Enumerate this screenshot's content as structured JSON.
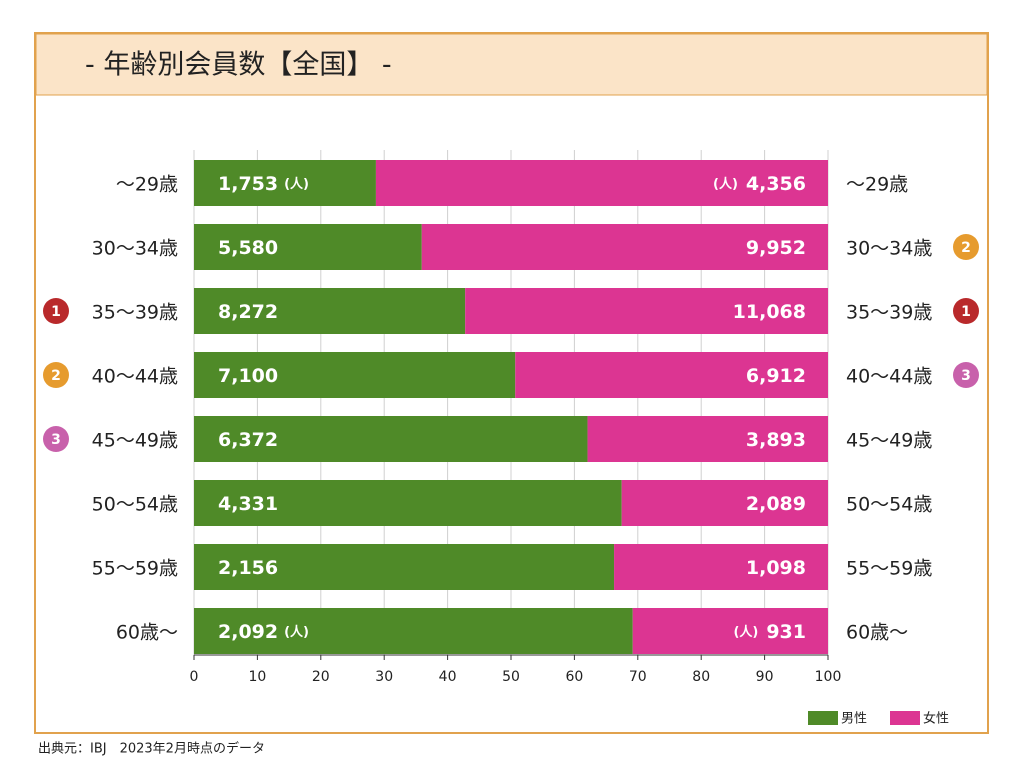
{
  "chart_data": {
    "type": "stacked_percent_bar",
    "title": "-  年齢別会員数【全国】 -",
    "categories": [
      "〜29歳",
      "30〜34歳",
      "35〜39歳",
      "40〜44歳",
      "45〜49歳",
      "50〜54歳",
      "55〜59歳",
      "60歳〜"
    ],
    "series": [
      {
        "name": "男性",
        "color": "#4f8a28",
        "values": [
          1753,
          5580,
          8272,
          7100,
          6372,
          4331,
          2156,
          2092
        ],
        "value_labels": [
          "1,753",
          "5,580",
          "8,272",
          "7,100",
          "6,372",
          "4,331",
          "2,156",
          "2,092"
        ]
      },
      {
        "name": "女性",
        "color": "#dc3592",
        "values": [
          4356,
          9952,
          11068,
          6912,
          3893,
          2089,
          1098,
          931
        ],
        "value_labels": [
          "4,356",
          "9,952",
          "11,068",
          "6,912",
          "3,893",
          "2,089",
          "1,098",
          "931"
        ]
      }
    ],
    "unit": "(人)",
    "xlim": [
      0,
      100
    ],
    "xticks": [
      0,
      10,
      20,
      30,
      40,
      50,
      60,
      70,
      80,
      90,
      100
    ],
    "grid": true,
    "legend": "lower right",
    "rank_badges_left": [
      null,
      null,
      "1",
      "2",
      "3",
      null,
      null,
      null
    ],
    "rank_badges_right": [
      null,
      "2",
      "1",
      "3",
      null,
      null,
      null,
      null
    ],
    "badge_colors": {
      "1": "#b9292b",
      "2": "#e69b2e",
      "3": "#c861ab"
    },
    "source": "出典元：IBJ　2023年2月時点のデータ"
  }
}
